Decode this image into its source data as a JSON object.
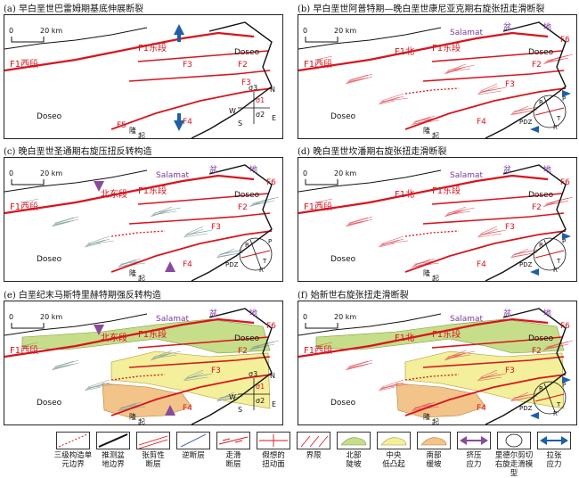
{
  "panels": [
    {
      "title": "(a) 早白垩世巴雷姆期基底伸展断裂",
      "scale": {
        "zero": "0",
        "dist": "20 km"
      },
      "labels": {
        "f1w": "F1西段",
        "f1e": "F1东段",
        "f2": "F2",
        "f3a": "F3",
        "f3b": "F3",
        "f4": "F4",
        "f5": "F5",
        "doseo1": "Doseo",
        "doseo2": "Doseo",
        "rise": "隆",
        "rise2": "起"
      },
      "stress": {
        "s1": "σ1",
        "s2": "σ2",
        "s3": "σ3",
        "n": "N",
        "e": "E",
        "w": "W",
        "s": "S"
      }
    },
    {
      "title": "(b) 早白垩世阿普特期—晚白垩世康尼亚克期右旋张扭走滑断裂",
      "scale": {
        "zero": "0",
        "dist": "20 km"
      },
      "labels": {
        "f1w": "F1西段",
        "f1e": "F1东段",
        "f1n": "F1北",
        "salamat": "Salamat",
        "pen": "盆",
        "di": "地",
        "f2": "F2",
        "f3": "F3",
        "f4": "F4",
        "f6": "F6",
        "doseo1": "Doseo",
        "doseo2": "Doseo",
        "rise": "隆",
        "rise2": "起"
      },
      "stress": {
        "p": "P",
        "r": "R",
        "r2": "R'",
        "t": "T",
        "pdz": "PDZ"
      }
    },
    {
      "title": "(c) 晚白垩世圣通期右旋压扭反转构造",
      "scale": {
        "zero": "0",
        "dist": "20 km"
      },
      "labels": {
        "f1w": "F1西段",
        "f1e": "F1东段",
        "f1n": "北东段",
        "salamat": "Salamat",
        "pen": "盆",
        "di": "地",
        "f2": "F2",
        "f3": "F3",
        "f4": "F4",
        "f6": "F6",
        "doseo1": "Doseo",
        "doseo2": "Doseo",
        "rise": "隆",
        "rise2": "起"
      },
      "stress": {
        "p": "P",
        "r": "R",
        "r2": "R'",
        "t": "T",
        "pdz": "PDZ"
      }
    },
    {
      "title": "(d) 晚白垩世坎潘期右旋张扭走滑断裂",
      "scale": {
        "zero": "0",
        "dist": "20 km"
      },
      "labels": {
        "f1w": "F1西段",
        "f1e": "F1东段",
        "f1n": "F1北",
        "salamat": "Salamat",
        "pen": "盆",
        "di": "地",
        "f2": "F2",
        "f3": "F3",
        "f4": "F4",
        "f6": "F6",
        "doseo1": "Doseo",
        "doseo2": "Doseo",
        "rise": "隆",
        "rise2": "起"
      },
      "stress": {
        "p": "P",
        "r": "R",
        "r2": "R'",
        "t": "T",
        "pdz": "PDZ"
      }
    },
    {
      "title": "(e) 白垩纪末马斯特里赫特期强反转构造",
      "scale": {
        "zero": "0",
        "dist": "20 km"
      },
      "labels": {
        "f1w": "F1西段",
        "f1e": "F1东段",
        "f1n": "北东段",
        "salamat": "Salamat",
        "pen": "盆",
        "di": "地",
        "f2": "F2",
        "f3": "F3",
        "f4": "F4",
        "f6": "F6",
        "doseo1": "Doseo",
        "doseo2": "Doseo",
        "rise": "隆",
        "rise2": "起"
      },
      "stress": {
        "s1": "σ1",
        "s2": "σ2",
        "s3": "σ3",
        "n": "N",
        "e": "E",
        "w": "W",
        "s": "S"
      }
    },
    {
      "title": "(f) 始新世右旋张扭走滑断裂",
      "scale": {
        "zero": "0",
        "dist": "20 km"
      },
      "labels": {
        "f1w": "F1西段",
        "f1e": "F1东段",
        "f1n": "F1北",
        "salamat": "Salamat",
        "pen": "盆",
        "di": "地",
        "f2": "F2",
        "f3": "F3",
        "f4": "F4",
        "f6": "F6",
        "doseo1": "Doseo",
        "doseo2": "Doseo",
        "rise": "隆",
        "rise2": "起"
      },
      "stress": {
        "p": "P",
        "r": "R",
        "r2": "R'",
        "t": "T",
        "pdz": "PDZ"
      }
    }
  ],
  "legend": [
    {
      "text": "三级构造单\n元边界",
      "sym": "dashed-red"
    },
    {
      "text": "推测盆\n地边界",
      "sym": "black-thick"
    },
    {
      "text": "张剪性\n断层",
      "sym": "red-thin"
    },
    {
      "text": "逆断层",
      "sym": "blue-thin"
    },
    {
      "text": "走滑\n断层",
      "sym": "strike-slip"
    },
    {
      "text": "假想的\n扭动面",
      "sym": "torsion"
    },
    {
      "text": "界限",
      "sym": "red-lines"
    },
    {
      "text": "北部\n陡坡",
      "sym": "green"
    },
    {
      "text": "中央\n低凸起",
      "sym": "yellow"
    },
    {
      "text": "南部\n缓坡",
      "sym": "orange"
    },
    {
      "text": "挤压\n应力",
      "sym": "purple-arrow"
    },
    {
      "text": "里德尔剪切\n右旋走滑模型",
      "sym": "riedel"
    },
    {
      "text": "拉张\n应力",
      "sym": "blue-arrow"
    }
  ],
  "colors": {
    "fault": "#d8141e",
    "boundary": "#111111",
    "reverse": "#4a6fb5",
    "purple": "#8a4a9a",
    "blue_arrow": "#1f5ea8",
    "green": "#c6dd8a",
    "yellow": "#f3ef9b",
    "orange": "#f2c48a",
    "label_purple": "#7a3a9a"
  }
}
